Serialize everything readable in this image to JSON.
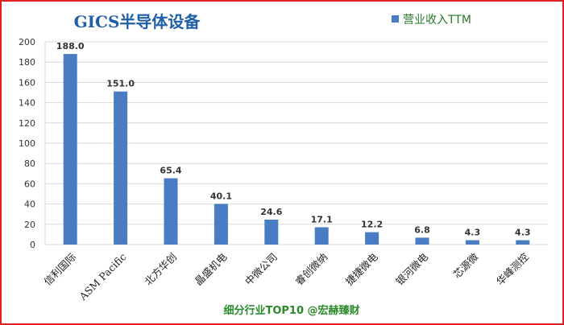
{
  "chart_data": {
    "type": "bar",
    "title": "GICS半导体设备",
    "categories": [
      "信利国际",
      "ASM Pacific",
      "北方华创",
      "晶盛机电",
      "中微公司",
      "睿创微纳",
      "捷捷微电",
      "银河微电",
      "芯源微",
      "华峰测控"
    ],
    "series": [
      {
        "name": "营业收入TTM",
        "values": [
          188.0,
          151.0,
          65.4,
          40.1,
          24.6,
          17.1,
          12.2,
          6.8,
          4.3,
          4.3
        ],
        "labels": [
          "188.0",
          "151.0",
          "65.4",
          "40.1",
          "24.6",
          "17.1",
          "12.2",
          "6.8",
          "4.3",
          "4.3"
        ]
      }
    ],
    "ylim": [
      0,
      200
    ],
    "yticks": [
      0,
      20,
      40,
      60,
      80,
      100,
      120,
      140,
      160,
      180,
      200
    ],
    "grid": true,
    "legend_position": "top-right",
    "footer": "细分行业TOP10 @宏赫臻财"
  },
  "colors": {
    "bar": "#4a7cc4",
    "frame": "#e02020",
    "title": "#1f5fa8",
    "legend_text": "#2a7a2a",
    "footer": "#2a8a2a",
    "grid": "#d9d9d9"
  }
}
